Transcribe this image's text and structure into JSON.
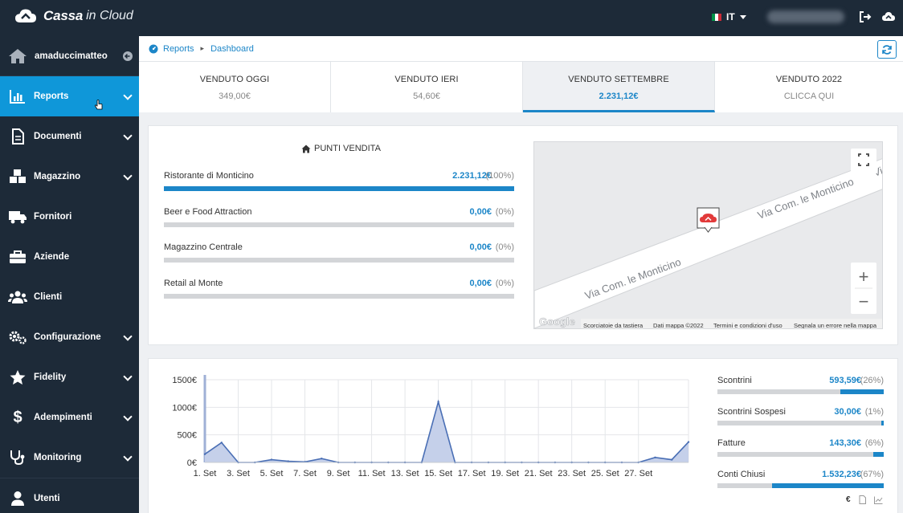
{
  "app": {
    "brand_bold": "Cassa",
    "brand_light": "in Cloud"
  },
  "header": {
    "language": "IT"
  },
  "sidebar": {
    "user": "amaduccimatteo",
    "items": [
      {
        "label": "Reports",
        "icon": "bar-chart-icon",
        "active": true,
        "expandable": true
      },
      {
        "label": "Documenti",
        "icon": "document-icon",
        "expandable": true
      },
      {
        "label": "Magazzino",
        "icon": "boxes-icon",
        "expandable": true
      },
      {
        "label": "Fornitori",
        "icon": "truck-icon",
        "expandable": false
      },
      {
        "label": "Aziende",
        "icon": "briefcase-icon",
        "expandable": false
      },
      {
        "label": "Clienti",
        "icon": "users-icon",
        "expandable": false
      },
      {
        "label": "Configurazione",
        "icon": "gears-icon",
        "expandable": true
      },
      {
        "label": "Fidelity",
        "icon": "star-icon",
        "expandable": true
      },
      {
        "label": "Adempimenti",
        "icon": "dollar-icon",
        "expandable": true
      },
      {
        "label": "Monitoring",
        "icon": "stethoscope-icon",
        "expandable": true
      },
      {
        "label": "Utenti",
        "icon": "user-icon",
        "expandable": false
      }
    ]
  },
  "breadcrumb": {
    "root": "Reports",
    "current": "Dashboard"
  },
  "tabs": [
    {
      "label": "VENDUTO OGGI",
      "value": "349,00€"
    },
    {
      "label": "VENDUTO IERI",
      "value": "54,60€"
    },
    {
      "label": "VENDUTO SETTEMBRE",
      "value": "2.231,12€",
      "active": true
    },
    {
      "label": "VENDUTO 2022",
      "value": "CLICCA QUI"
    }
  ],
  "punti_vendita": {
    "title": "PUNTI VENDITA",
    "rows": [
      {
        "name": "Ristorante di Monticino",
        "amount": "2.231,12€",
        "pct": "(100%)",
        "fraction": 1.0
      },
      {
        "name": "Beer e Food Attraction",
        "amount": "0,00€",
        "pct": "(0%)",
        "fraction": 0
      },
      {
        "name": "Magazzino Centrale",
        "amount": "0,00€",
        "pct": "(0%)",
        "fraction": 0
      },
      {
        "name": "Retail al Monte",
        "amount": "0,00€",
        "pct": "(0%)",
        "fraction": 0
      }
    ]
  },
  "map": {
    "street_upper": "Via Com. le Monticino",
    "street_lower": "Via Com. le Monticino",
    "street_edge": "Vi",
    "attribution": {
      "logo": "Google",
      "shortcuts": "Scorciatoie da tastiera",
      "data": "Dati mappa ©2022",
      "terms": "Termini e condizioni d'uso",
      "report": "Segnala un errore nella mappa"
    },
    "zoom_in": "+",
    "zoom_out": "−"
  },
  "chart_data": {
    "type": "area",
    "x": [
      1,
      2,
      3,
      4,
      5,
      6,
      7,
      8,
      9,
      10,
      11,
      12,
      13,
      14,
      15,
      16,
      17,
      18,
      19,
      20,
      21,
      22,
      23,
      24,
      25,
      26,
      27,
      28,
      29,
      30
    ],
    "values": [
      150,
      360,
      0,
      0,
      50,
      20,
      10,
      70,
      0,
      0,
      0,
      0,
      0,
      0,
      1100,
      0,
      0,
      0,
      0,
      0,
      0,
      0,
      0,
      0,
      0,
      0,
      0,
      90,
      50,
      370
    ],
    "tick_labels": [
      "1. Set",
      "3. Set",
      "5. Set",
      "7. Set",
      "9. Set",
      "11. Set",
      "13. Set",
      "15. Set",
      "17. Set",
      "19. Set",
      "21. Set",
      "23. Set",
      "25. Set",
      "27. Set"
    ],
    "y_tick_labels": [
      "1500€",
      "1000€",
      "500€",
      "0€"
    ],
    "ylim": [
      0,
      1500
    ],
    "color": "#4a6fb5",
    "fill": "#c5d0ea"
  },
  "breakdown": [
    {
      "name": "Scontrini",
      "amount": "593,59€",
      "pct": "(26%)",
      "fraction": 0.26
    },
    {
      "name": "Scontrini Sospesi",
      "amount": "30,00€",
      "pct": "(1%)",
      "fraction": 0.013
    },
    {
      "name": "Fatture",
      "amount": "143,30€",
      "pct": "(6%)",
      "fraction": 0.064
    },
    {
      "name": "Conti Chiusi",
      "amount": "1.532,23€",
      "pct": "(67%)",
      "fraction": 0.67
    }
  ],
  "chart_footer": {
    "currency_symbol": "€"
  },
  "colors": {
    "primary": "#1c86c8",
    "sidebar": "#1d2a38",
    "active": "#0f97d9"
  }
}
